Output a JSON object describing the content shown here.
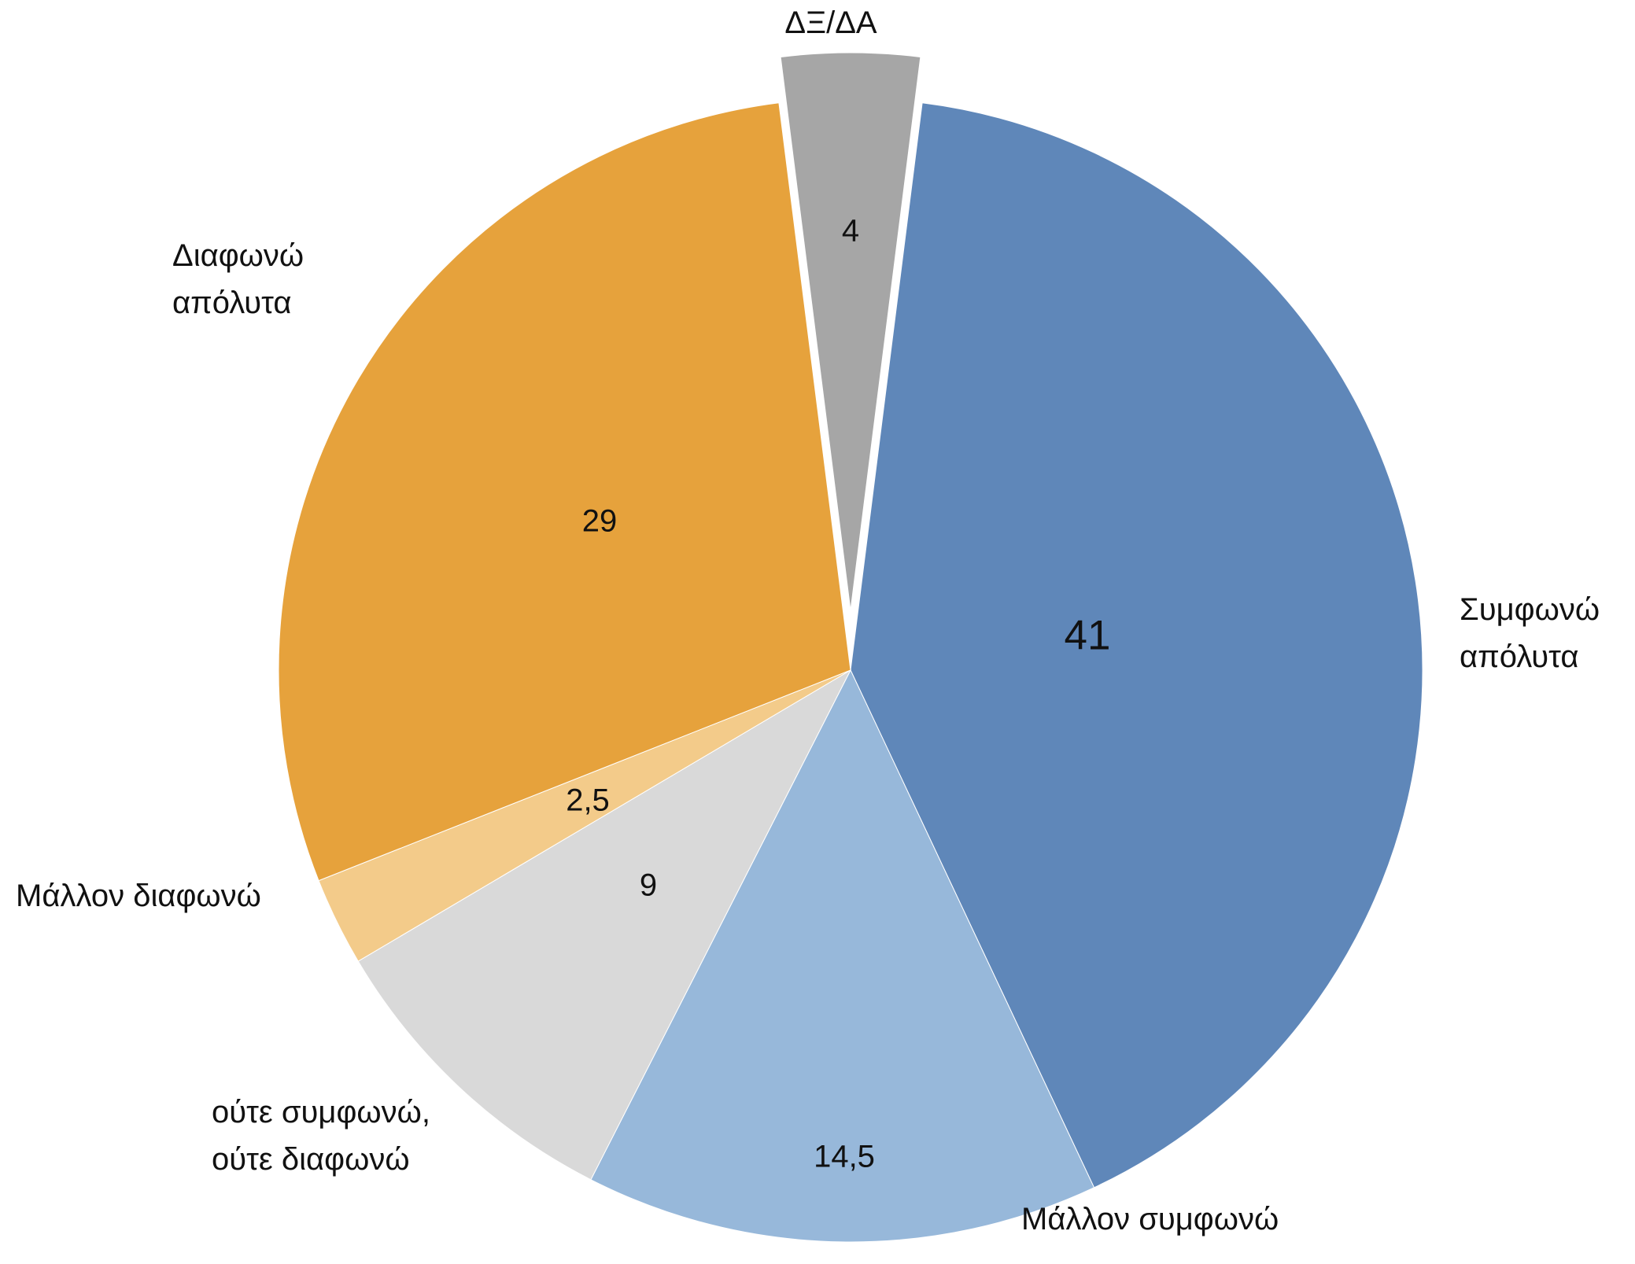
{
  "chart_data": {
    "type": "pie",
    "categories": [
      "Συμφωνώ\nαπόλυτα",
      "Μάλλον συμφωνώ",
      "ούτε συμφωνώ,\nούτε διαφωνώ",
      "Μάλλον διαφωνώ",
      "Διαφωνώ\nαπόλυτα",
      "ΔΞ/ΔΑ"
    ],
    "values": [
      41,
      14.5,
      9,
      2.5,
      29,
      4
    ],
    "value_labels": [
      "41",
      "14,5",
      "9",
      "2,5",
      "29",
      "4"
    ],
    "colors": [
      "#5f87b9",
      "#97b8da",
      "#d9d9d9",
      "#f3cb8a",
      "#e6a23c",
      "#a6a6a6"
    ],
    "exploded_index": 5
  }
}
